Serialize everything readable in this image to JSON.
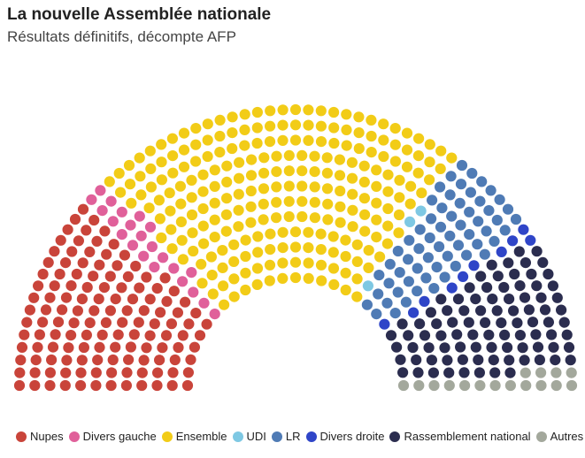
{
  "header": {
    "title": "La nouvelle Assemblée nationale",
    "subtitle": "Résultats définitifs, décompte AFP"
  },
  "chart_data": {
    "type": "parliament",
    "total_seats": 577,
    "series": [
      {
        "name": "Nupes",
        "seats": 131,
        "color": "#c9443a"
      },
      {
        "name": "Divers gauche",
        "seats": 22,
        "color": "#e0609a"
      },
      {
        "name": "Ensemble",
        "seats": 245,
        "color": "#f2cc17"
      },
      {
        "name": "UDI",
        "seats": 3,
        "color": "#7ec8e3"
      },
      {
        "name": "LR",
        "seats": 61,
        "color": "#4f7bb5"
      },
      {
        "name": "Divers droite",
        "seats": 10,
        "color": "#2f45c8"
      },
      {
        "name": "Rassemblement national",
        "seats": 89,
        "color": "#2b2d4f"
      },
      {
        "name": "Autres",
        "seats": 16,
        "color": "#a3a89c"
      }
    ]
  }
}
